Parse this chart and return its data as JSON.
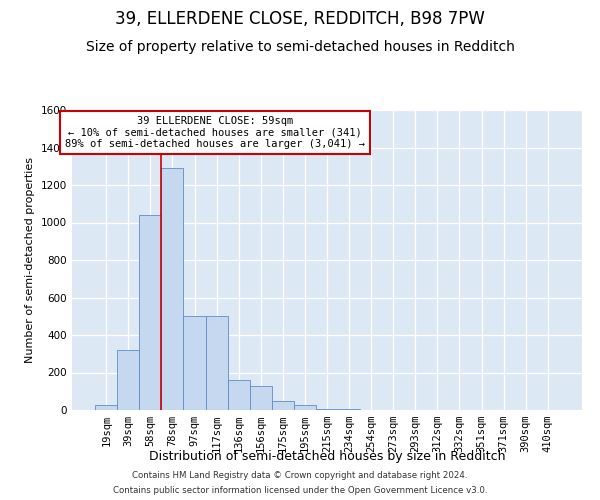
{
  "title": "39, ELLERDENE CLOSE, REDDITCH, B98 7PW",
  "subtitle": "Size of property relative to semi-detached houses in Redditch",
  "xlabel": "Distribution of semi-detached houses by size in Redditch",
  "ylabel": "Number of semi-detached properties",
  "footer_line1": "Contains HM Land Registry data © Crown copyright and database right 2024.",
  "footer_line2": "Contains public sector information licensed under the Open Government Licence v3.0.",
  "annotation_line1": "39 ELLERDENE CLOSE: 59sqm",
  "annotation_line2": "← 10% of semi-detached houses are smaller (341)",
  "annotation_line3": "89% of semi-detached houses are larger (3,041) →",
  "bar_labels": [
    "19sqm",
    "39sqm",
    "58sqm",
    "78sqm",
    "97sqm",
    "117sqm",
    "136sqm",
    "156sqm",
    "175sqm",
    "195sqm",
    "215sqm",
    "234sqm",
    "254sqm",
    "273sqm",
    "293sqm",
    "312sqm",
    "332sqm",
    "351sqm",
    "371sqm",
    "390sqm",
    "410sqm"
  ],
  "bar_values": [
    28,
    320,
    1040,
    1290,
    500,
    500,
    160,
    130,
    50,
    25,
    5,
    3,
    2,
    1,
    0,
    0,
    0,
    0,
    0,
    0,
    0
  ],
  "bar_color": "#c5d8ef",
  "bar_edge_color": "#5b8dc8",
  "line_color": "#cc0000",
  "annotation_box_color": "#ffffff",
  "annotation_box_edge": "#cc0000",
  "background_color": "#dde8f5",
  "ylim": [
    0,
    1600
  ],
  "property_line_x": 2.5,
  "title_fontsize": 12,
  "subtitle_fontsize": 10,
  "ylabel_fontsize": 8,
  "xlabel_fontsize": 9,
  "tick_fontsize": 7.5,
  "annot_fontsize": 7.5
}
